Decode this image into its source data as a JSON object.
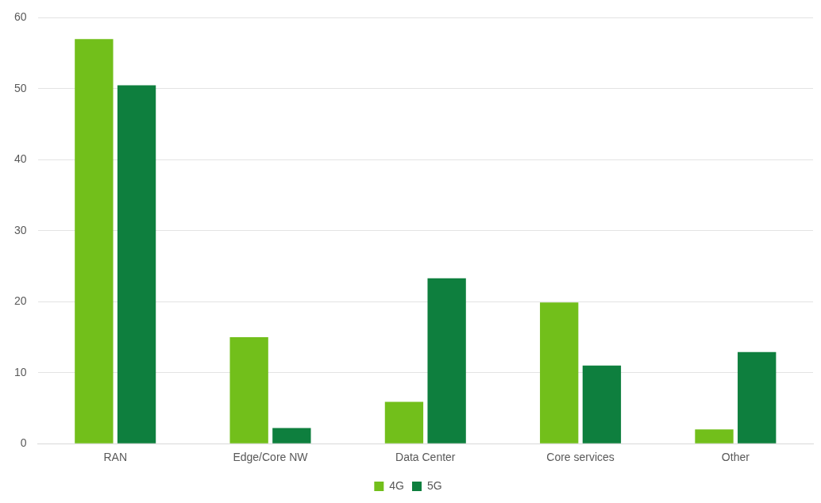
{
  "chart_data": {
    "type": "bar",
    "categories": [
      "RAN",
      "Edge/Core NW",
      "Data Center",
      "Core services",
      "Other"
    ],
    "series": [
      {
        "name": "4G",
        "color": "#72bf1b",
        "values": [
          57.0,
          15.0,
          5.9,
          19.9,
          2.0
        ]
      },
      {
        "name": "5G",
        "color": "#0e7f3e",
        "values": [
          50.5,
          2.2,
          23.3,
          11.0,
          12.9
        ]
      }
    ],
    "ylim": [
      0,
      60
    ],
    "yticks": [
      0,
      10,
      20,
      30,
      40,
      50,
      60
    ],
    "grid": "y",
    "legend": "bottom"
  }
}
